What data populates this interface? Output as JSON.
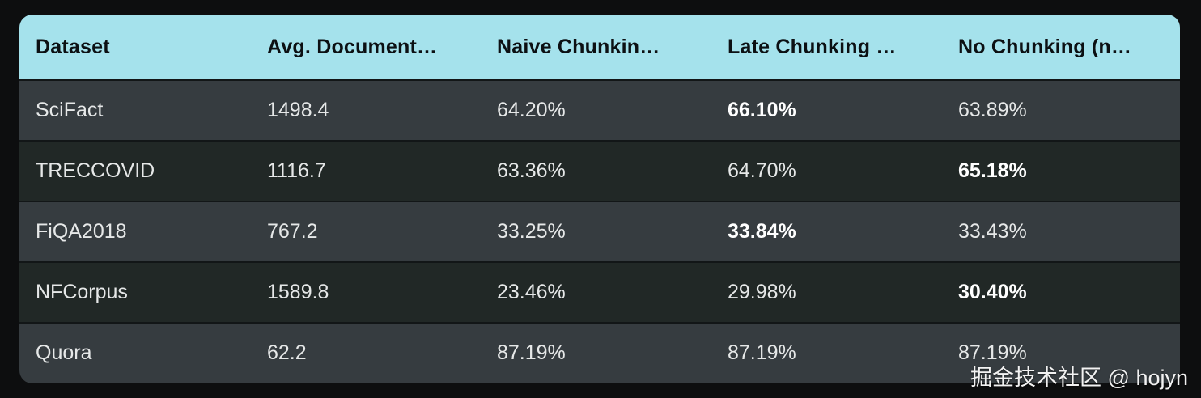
{
  "table": {
    "columns": [
      {
        "label": "Dataset"
      },
      {
        "label": "Avg. Document…"
      },
      {
        "label": "Naive Chunkin…"
      },
      {
        "label": "Late Chunking …"
      },
      {
        "label": "No Chunking (n…"
      }
    ],
    "rows": [
      {
        "dataset": "SciFact",
        "avg_doc": "1498.4",
        "naive": "64.20%",
        "late": "66.10%",
        "none": "63.89%",
        "best_column": "late"
      },
      {
        "dataset": "TRECCOVID",
        "avg_doc": "1116.7",
        "naive": "63.36%",
        "late": "64.70%",
        "none": "65.18%",
        "best_column": "none"
      },
      {
        "dataset": "FiQA2018",
        "avg_doc": "767.2",
        "naive": "33.25%",
        "late": "33.84%",
        "none": "33.43%",
        "best_column": "late"
      },
      {
        "dataset": "NFCorpus",
        "avg_doc": "1589.8",
        "naive": "23.46%",
        "late": "29.98%",
        "none": "30.40%",
        "best_column": "none"
      },
      {
        "dataset": "Quora",
        "avg_doc": "62.2",
        "naive": "87.19%",
        "late": "87.19%",
        "none": "87.19%",
        "best_column": ""
      }
    ]
  },
  "watermark": {
    "text": "掘金技术社区 @ hojyn"
  },
  "colors": {
    "header_bg": "#a5e2ec",
    "header_text": "#0c1013",
    "row_odd_bg": "#363c40",
    "row_even_bg": "#212826",
    "row_divider": "#121617",
    "cell_text": "#e6e8e8",
    "bold_cell_text": "#ffffff",
    "page_bg": "#0d0e0f"
  }
}
